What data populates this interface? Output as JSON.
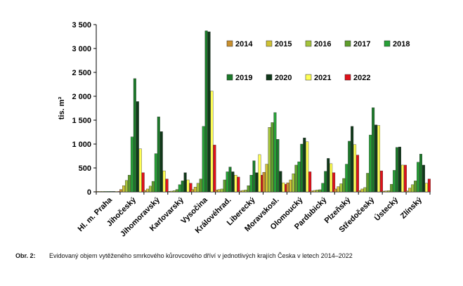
{
  "chart_data": {
    "type": "bar",
    "ylabel": "tis. m³",
    "ylim": [
      0,
      3500
    ],
    "yticks": [
      "0",
      "500",
      "1 000",
      "1 500",
      "2 000",
      "2 500",
      "3 000",
      "3 500"
    ],
    "grid": false,
    "legend_position": "top-right",
    "categories": [
      "Hl. m. Praha",
      "Jihočeský",
      "Jihomoravský",
      "Karlovarský",
      "Vysočina",
      "Královéhrad.",
      "Liberecký",
      "Moravskosl.",
      "Olomoucký",
      "Pardubický",
      "Plzeňský",
      "Středočeský",
      "Ústecký",
      "Zlínský"
    ],
    "series": [
      {
        "name": "2014",
        "color": "#c9902e",
        "values": [
          3,
          50,
          30,
          10,
          50,
          40,
          20,
          410,
          190,
          20,
          60,
          25,
          15,
          20
        ]
      },
      {
        "name": "2015",
        "color": "#cfc234",
        "values": [
          4,
          130,
          60,
          15,
          100,
          50,
          30,
          580,
          250,
          30,
          110,
          60,
          20,
          80
        ]
      },
      {
        "name": "2016",
        "color": "#a5c43c",
        "values": [
          5,
          240,
          120,
          25,
          180,
          60,
          40,
          1350,
          380,
          40,
          170,
          90,
          25,
          150
        ]
      },
      {
        "name": "2017",
        "color": "#5f9e2c",
        "values": [
          6,
          350,
          220,
          50,
          270,
          250,
          130,
          1450,
          560,
          45,
          280,
          390,
          160,
          230
        ]
      },
      {
        "name": "2018",
        "color": "#27a037",
        "values": [
          7,
          1150,
          800,
          150,
          1370,
          420,
          350,
          1660,
          630,
          180,
          580,
          1190,
          450,
          620
        ]
      },
      {
        "name": "2019",
        "color": "#1c7a2a",
        "values": [
          9,
          2370,
          1570,
          230,
          3370,
          520,
          650,
          1100,
          1000,
          430,
          1060,
          1760,
          930,
          790
        ]
      },
      {
        "name": "2020",
        "color": "#10381a",
        "values": [
          8,
          1890,
          1260,
          400,
          3350,
          420,
          400,
          430,
          1130,
          700,
          1370,
          1400,
          940,
          560
        ]
      },
      {
        "name": "2021",
        "color": "#ffff55",
        "values": [
          6,
          900,
          440,
          250,
          2110,
          350,
          780,
          190,
          1050,
          590,
          990,
          1390,
          560,
          180
        ]
      },
      {
        "name": "2022",
        "color": "#e0111a",
        "values": [
          5,
          400,
          270,
          180,
          980,
          310,
          350,
          160,
          420,
          400,
          770,
          440,
          560,
          270
        ]
      }
    ]
  },
  "caption": {
    "label": "Obr. 2:",
    "text": "Evidovaný objem vytěženého smrkového kůrovcového dříví v jednotlivých krajích Česka v letech 2014–2022"
  }
}
